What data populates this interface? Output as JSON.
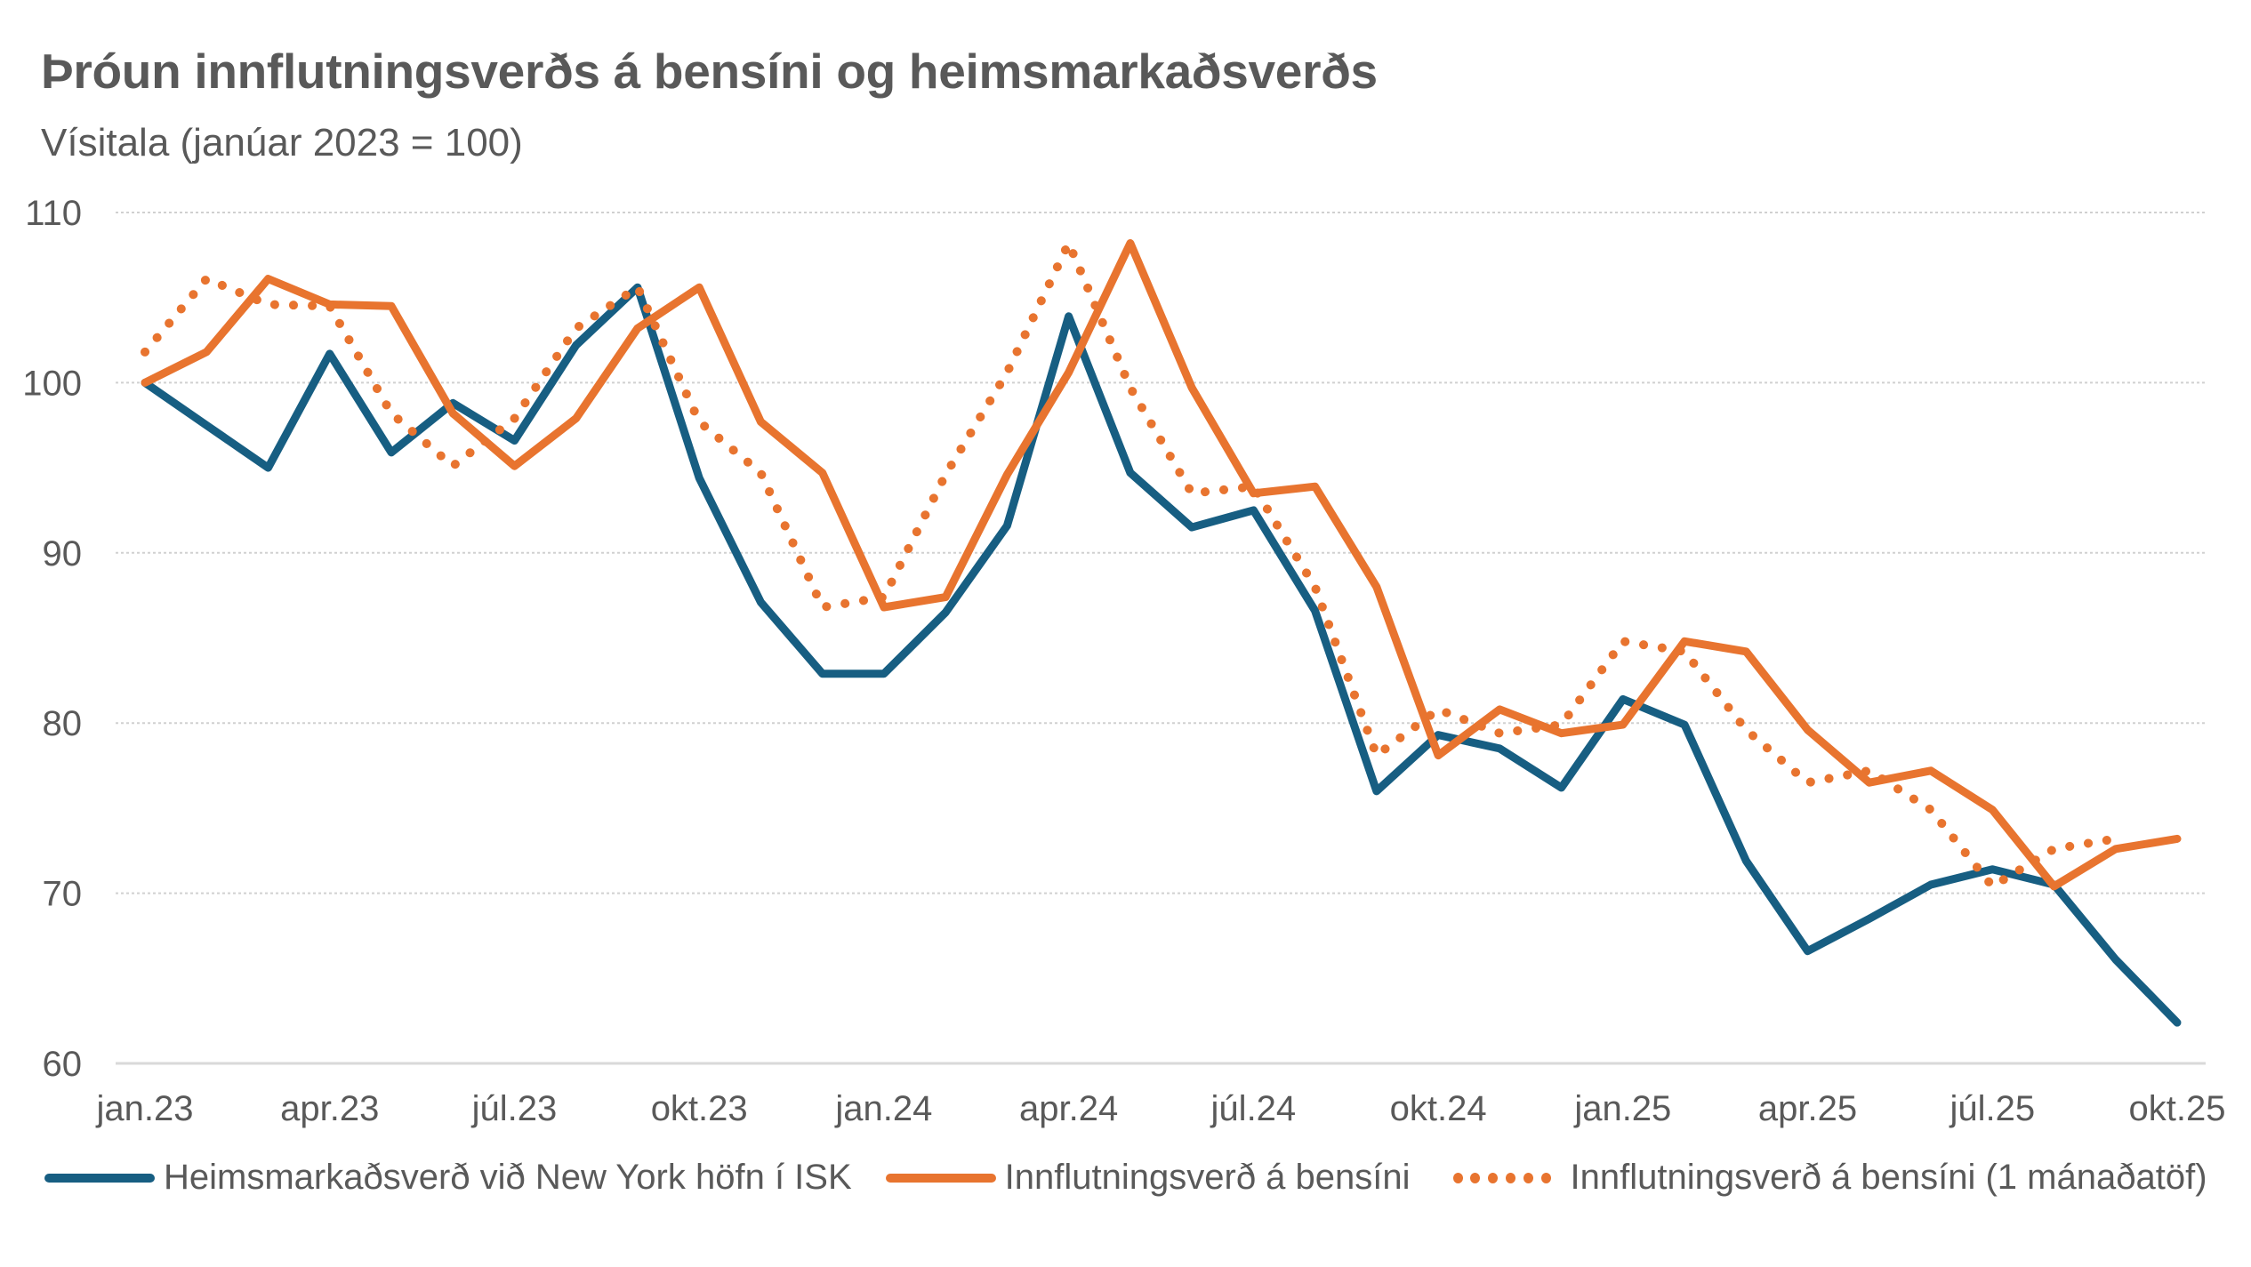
{
  "title": "Þróun innflutningsverðs á bensíni og heimsmarkaðsverðs",
  "subtitle": "Vísitala (janúar 2023 = 100)",
  "colors": {
    "world_price": "#175E82",
    "import_price": "#E8742F",
    "grid": "#D0D0D0",
    "axis": "#D9D9D9",
    "text": "#595959"
  },
  "legend": [
    {
      "label": "Heimsmarkaðsverð við New York höfn í ISK",
      "style": "solid",
      "color": "#175E82"
    },
    {
      "label": "Innflutningsverð á bensíni",
      "style": "solid",
      "color": "#E8742F"
    },
    {
      "label": "Innflutningsverð á bensíni (1 mánaðatöf)",
      "style": "dotted",
      "color": "#E8742F"
    }
  ],
  "chart_data": {
    "type": "line",
    "title": "Þróun innflutningsverðs á bensíni og heimsmarkaðsverðs",
    "subtitle": "Vísitala (janúar 2023 = 100)",
    "xlabel": "",
    "ylabel": "Vísitala (janúar 2023 = 100)",
    "ylim": [
      60,
      110
    ],
    "yticks": [
      60,
      70,
      80,
      90,
      100,
      110
    ],
    "grid": {
      "y": true,
      "x": false,
      "style": "dotted"
    },
    "legend_position": "bottom",
    "x_tick_labels": [
      "jan.23",
      "apr.23",
      "júl.23",
      "okt.23",
      "jan.24",
      "apr.24",
      "júl.24",
      "okt.24",
      "jan.25",
      "apr.25",
      "júl.25",
      "okt.25"
    ],
    "x_tick_step_months": 3,
    "x": [
      "jan.23",
      "feb.23",
      "mar.23",
      "apr.23",
      "maí.23",
      "jún.23",
      "júl.23",
      "ágú.23",
      "sep.23",
      "okt.23",
      "nóv.23",
      "des.23",
      "jan.24",
      "feb.24",
      "mar.24",
      "apr.24",
      "maí.24",
      "jún.24",
      "júl.24",
      "ágú.24",
      "sep.24",
      "okt.24",
      "nóv.24",
      "des.24",
      "jan.25",
      "feb.25",
      "mar.25",
      "apr.25",
      "maí.25",
      "jún.25",
      "júl.25",
      "ágú.25",
      "sep.25",
      "okt.25"
    ],
    "series": [
      {
        "name": "Heimsmarkaðsverð við New York höfn í ISK",
        "style": "solid",
        "color": "#175E82",
        "values": [
          100,
          97.5,
          95.0,
          101.7,
          95.9,
          98.8,
          96.6,
          102.2,
          105.6,
          94.4,
          87.1,
          82.9,
          82.9,
          86.5,
          91.6,
          103.9,
          94.7,
          91.5,
          92.5,
          86.6,
          76.0,
          79.3,
          78.5,
          76.2,
          81.4,
          79.9,
          71.9,
          66.6,
          68.5,
          70.5,
          71.4,
          70.5,
          66.1,
          62.4
        ]
      },
      {
        "name": "Innflutningsverð á bensíni",
        "style": "solid",
        "color": "#E8742F",
        "values": [
          100,
          101.8,
          106.1,
          104.6,
          104.5,
          98.2,
          95.1,
          97.9,
          103.2,
          105.6,
          97.7,
          94.7,
          86.8,
          87.4,
          94.6,
          100.6,
          108.2,
          99.7,
          93.5,
          93.9,
          88.0,
          78.1,
          80.8,
          79.4,
          79.9,
          84.8,
          84.2,
          79.6,
          76.5,
          77.2,
          74.9,
          70.4,
          72.6,
          73.2
        ]
      },
      {
        "name": "Innflutningsverð á bensíni (1 mánaðatöf)",
        "style": "dotted",
        "color": "#E8742F",
        "values": [
          101.8,
          106.1,
          104.6,
          104.5,
          98.2,
          95.1,
          97.9,
          103.2,
          105.6,
          97.7,
          94.7,
          86.8,
          87.4,
          94.6,
          100.6,
          108.2,
          99.7,
          93.5,
          93.9,
          88.0,
          78.1,
          80.8,
          79.4,
          79.9,
          84.8,
          84.2,
          79.6,
          76.5,
          77.2,
          74.9,
          70.4,
          72.6,
          73.2,
          null
        ]
      }
    ]
  }
}
